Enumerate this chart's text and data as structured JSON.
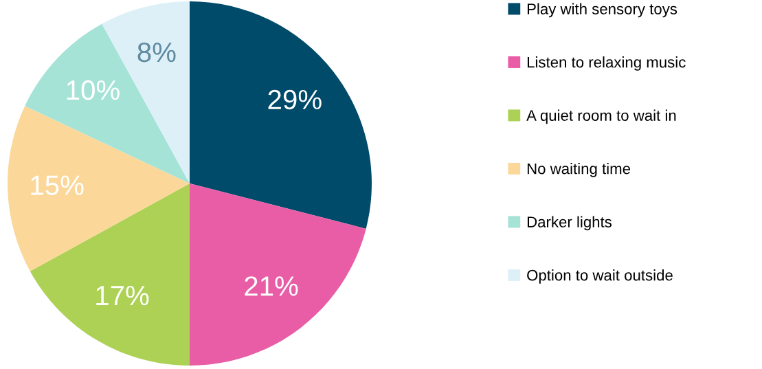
{
  "chart_data": {
    "type": "pie",
    "categories": [
      "Play with sensory toys",
      "Listen to relaxing music",
      "A quiet room to wait in",
      "No waiting time",
      "Darker lights",
      "Option to wait outside"
    ],
    "values": [
      29,
      21,
      17,
      15,
      10,
      8
    ],
    "value_labels": [
      "29%",
      "21%",
      "17%",
      "15%",
      "10%",
      "8%"
    ],
    "colors": [
      "#004a6a",
      "#e95ca6",
      "#acd155",
      "#fbd89a",
      "#a6e3d7",
      "#ddf0f8"
    ],
    "legend": "right"
  }
}
